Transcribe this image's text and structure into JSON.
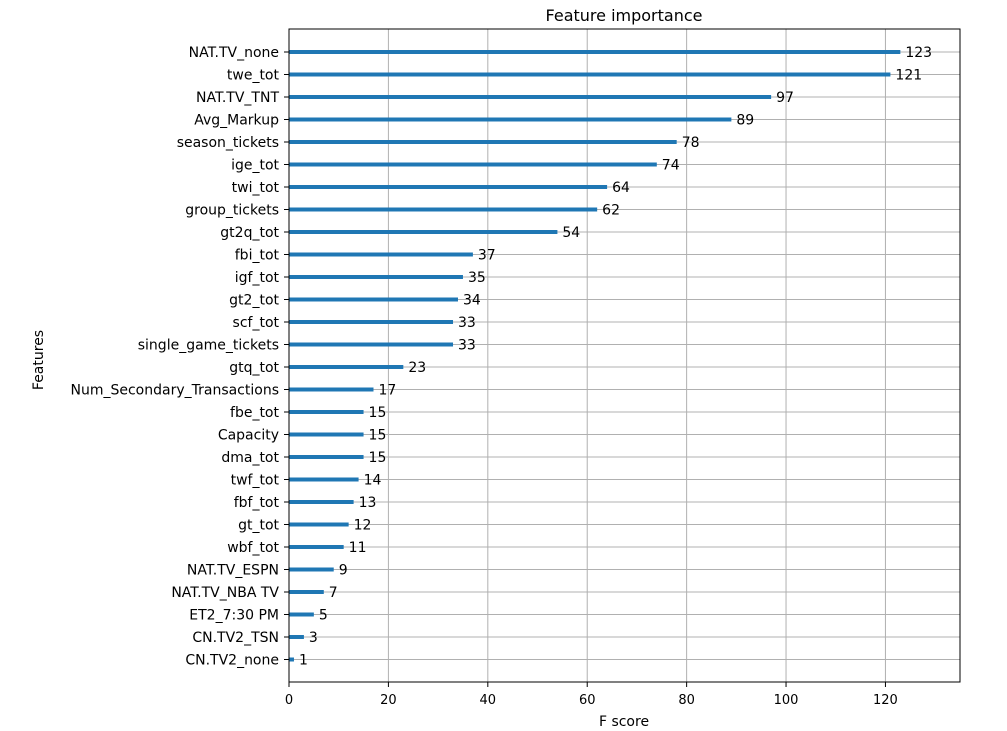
{
  "chart_data": {
    "type": "bar",
    "orientation": "horizontal",
    "title": "Feature importance",
    "xlabel": "F score",
    "ylabel": "Features",
    "xlim": [
      0,
      135
    ],
    "xticks": [
      0,
      20,
      40,
      60,
      80,
      100,
      120
    ],
    "grid": true,
    "bar_color": "#1f77b4",
    "categories": [
      "NAT.TV_none",
      "twe_tot",
      "NAT.TV_TNT",
      "Avg_Markup",
      "season_tickets",
      "ige_tot",
      "twi_tot",
      "group_tickets",
      "gt2q_tot",
      "fbi_tot",
      "igf_tot",
      "gt2_tot",
      "scf_tot",
      "single_game_tickets",
      "gtq_tot",
      "Num_Secondary_Transactions",
      "fbe_tot",
      "Capacity",
      "dma_tot",
      "twf_tot",
      "fbf_tot",
      "gt_tot",
      "wbf_tot",
      "NAT.TV_ESPN",
      "NAT.TV_NBA TV",
      "ET2_7:30 PM",
      "CN.TV2_TSN",
      "CN.TV2_none"
    ],
    "values": [
      123,
      121,
      97,
      89,
      78,
      74,
      64,
      62,
      54,
      37,
      35,
      34,
      33,
      33,
      23,
      17,
      15,
      15,
      15,
      14,
      13,
      12,
      11,
      9,
      7,
      5,
      3,
      1
    ]
  }
}
